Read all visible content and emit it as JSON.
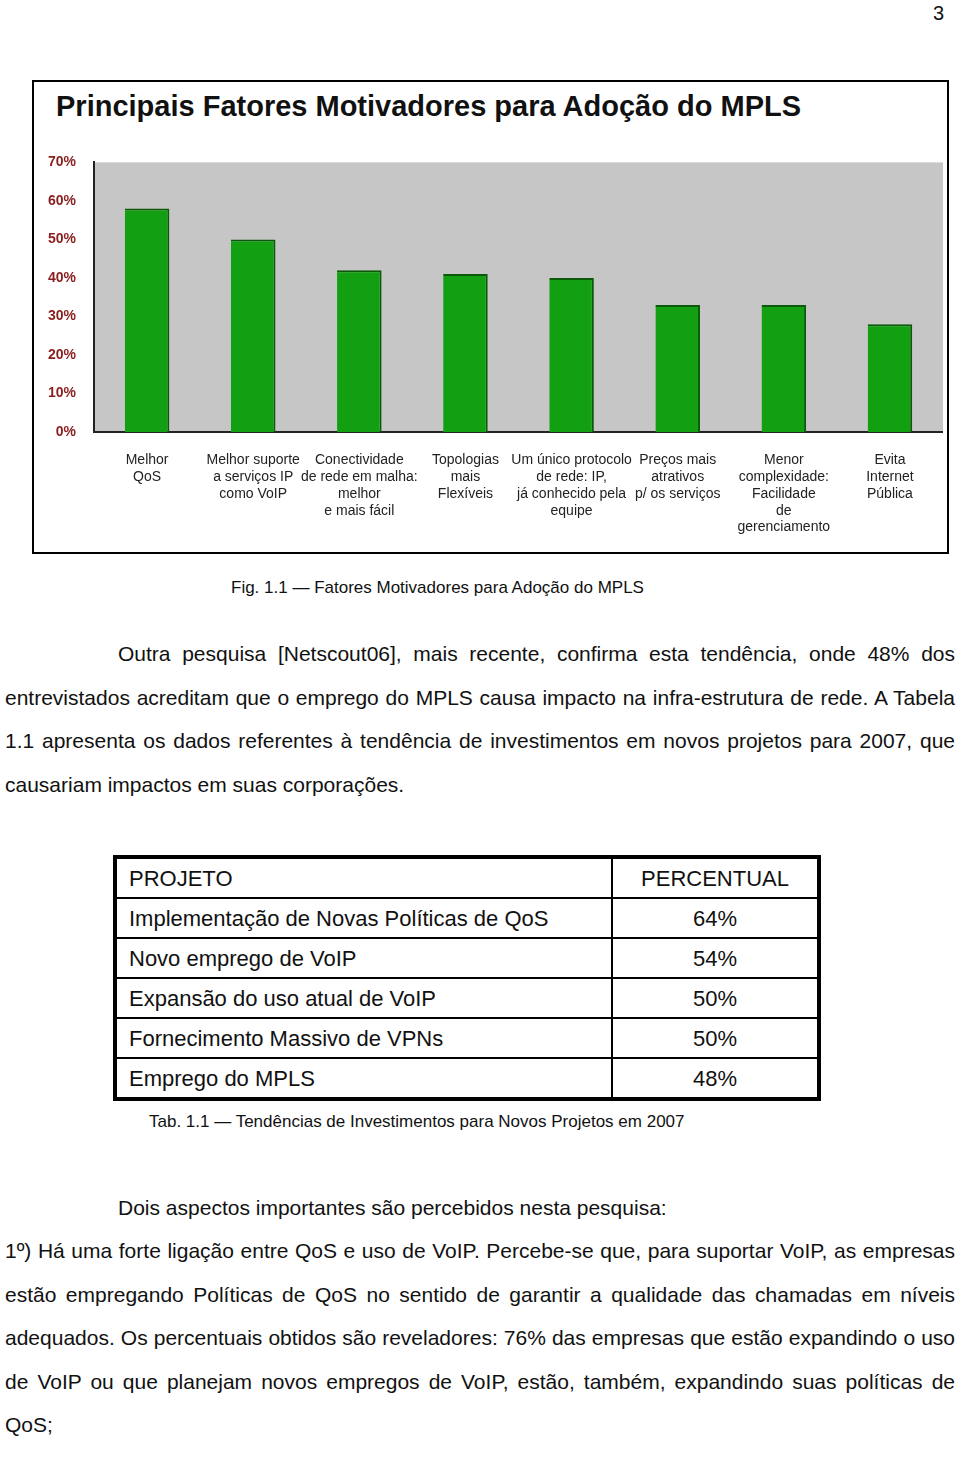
{
  "page_number": "3",
  "chart_data": {
    "type": "bar",
    "title": "Principais Fatores Motivadores para Adoção do MPLS",
    "categories": [
      [
        "Melhor",
        "QoS"
      ],
      [
        "Melhor suporte",
        "a serviços IP",
        "como VoIP"
      ],
      [
        "Conectividade",
        "de rede em malha:",
        "melhor",
        "e mais fácil"
      ],
      [
        "Topologias",
        "mais",
        "Flexíveis"
      ],
      [
        "Um único protocolo",
        "de rede: IP,",
        "já conhecido pela",
        "equipe"
      ],
      [
        "Preços mais",
        "atrativos",
        "p/ os serviços"
      ],
      [
        "Menor",
        "complexidade:",
        "Facilidade",
        "de",
        "gerenciamento"
      ],
      [
        "Evita",
        "Internet",
        "Pública"
      ]
    ],
    "values": [
      58,
      50,
      42,
      41,
      40,
      33,
      33,
      28
    ],
    "color": "#12a012",
    "ylim": [
      0,
      70
    ],
    "yticks": [
      {
        "value": 0,
        "label": "0%"
      },
      {
        "value": 10,
        "label": "10%"
      },
      {
        "value": 20,
        "label": "20%"
      },
      {
        "value": 30,
        "label": "30%"
      },
      {
        "value": 40,
        "label": "40%"
      },
      {
        "value": 50,
        "label": "50%"
      },
      {
        "value": 60,
        "label": "60%"
      },
      {
        "value": 70,
        "label": "70%"
      }
    ],
    "grid": false
  },
  "figure_caption": "Fig. 1.1 — Fatores Motivadores para Adoção do MPLS",
  "paragraph_1": "Outra pesquisa [Netscout06], mais recente, confirma esta tendência, onde 48% dos entrevistados acreditam que o emprego do MPLS causa impacto na infra-estrutura de rede. A Tabela 1.1 apresenta os dados referentes à tendência de investimentos em novos projetos para 2007, que causariam impactos em suas corporações.",
  "table": {
    "header": [
      "PROJETO",
      "PERCENTUAL"
    ],
    "rows": [
      [
        "Implementação de Novas Políticas de QoS",
        "64%"
      ],
      [
        "Novo emprego de VoIP",
        "54%"
      ],
      [
        "Expansão do uso atual de VoIP",
        "50%"
      ],
      [
        "Fornecimento Massivo de VPNs",
        "50%"
      ],
      [
        "Emprego do MPLS",
        "48%"
      ]
    ]
  },
  "table_caption": "Tab. 1.1 — Tendências de Investimentos para Novos Projetos em 2007",
  "paragraph_2": "Dois aspectos importantes são percebidos nesta pesquisa:",
  "paragraph_3": "1º) Há uma forte ligação entre QoS e uso de VoIP. Percebe-se que, para suportar VoIP, as empresas estão empregando Políticas de QoS no sentido de garantir a qualidade das chamadas em níveis adequados. Os percentuais obtidos são reveladores: 76% das empresas que estão expandindo o uso de VoIP ou que planejam novos empregos de VoIP, estão, também, expandindo suas políticas de QoS;"
}
